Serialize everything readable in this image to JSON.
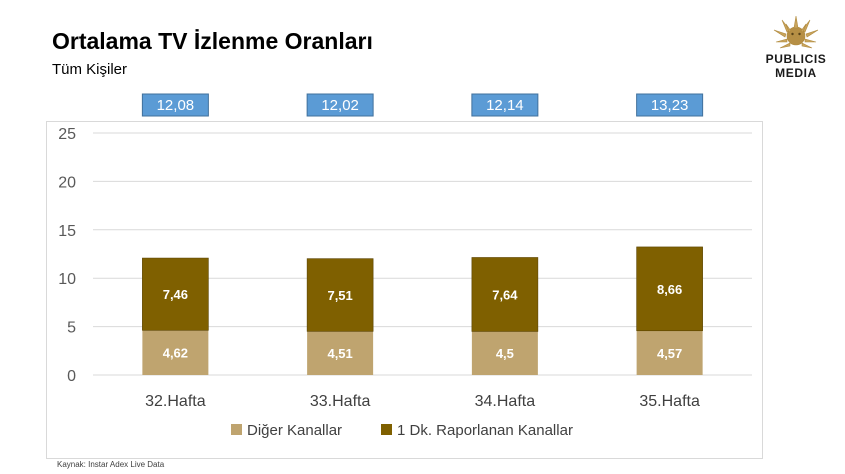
{
  "header": {
    "title": "Ortalama TV İzlenme Oranları",
    "subtitle": "Tüm Kişiler"
  },
  "logo": {
    "line1": "PUBLICIS",
    "line2": "MEDIA"
  },
  "source_note": "Kaynak: Instar  Adex Live Data",
  "colors": {
    "diger": "#BFA46F",
    "raporlanan": "#7F6000",
    "total_box": "#5B9BD5",
    "grid": "#D9D9D9"
  },
  "chart_data": {
    "type": "bar",
    "stacked": true,
    "title": "Ortalama TV İzlenme Oranları",
    "subtitle": "Tüm Kişiler",
    "categories": [
      "32.Hafta",
      "33.Hafta",
      "34.Hafta",
      "35.Hafta"
    ],
    "series": [
      {
        "name": "Diğer Kanallar",
        "values": [
          4.62,
          4.51,
          4.5,
          4.57
        ],
        "labels": [
          "4,62",
          "4,51",
          "4,5",
          "4,57"
        ]
      },
      {
        "name": "1 Dk. Raporlanan Kanallar",
        "values": [
          7.46,
          7.51,
          7.64,
          8.66
        ],
        "labels": [
          "7,46",
          "7,51",
          "7,64",
          "8,66"
        ]
      }
    ],
    "totals": [
      12.08,
      12.02,
      12.14,
      13.23
    ],
    "total_labels": [
      "12,08",
      "12,02",
      "12,14",
      "13,23"
    ],
    "yticks": [
      "0",
      "5",
      "10",
      "15",
      "20",
      "25"
    ],
    "ylim": [
      0,
      25
    ],
    "grid": true,
    "legend_position": "bottom"
  }
}
